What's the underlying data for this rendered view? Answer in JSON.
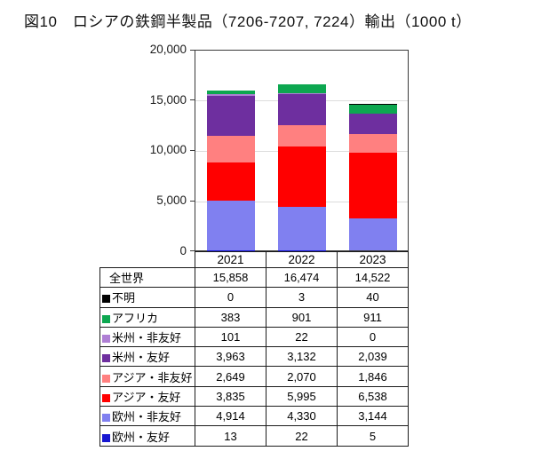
{
  "title": "図10　ロシアの鉄鋼半製品（7206-7207, 7224）輸出（1000 t）",
  "chart_data": {
    "type": "bar",
    "stacked": true,
    "title": "図10　ロシアの鉄鋼半製品（7206-7207, 7224）輸出（1000 t）",
    "categories": [
      "2021",
      "2022",
      "2023"
    ],
    "series_bottom_to_top": [
      {
        "name": "欧州・友好",
        "color": "#1717D1",
        "values": [
          13,
          22,
          5
        ]
      },
      {
        "name": "欧州・非友好",
        "color": "#8080F0",
        "values": [
          4914,
          4330,
          3144
        ]
      },
      {
        "name": "アジア・友好",
        "color": "#FF0000",
        "values": [
          3835,
          5995,
          6538
        ]
      },
      {
        "name": "アジア・非友好",
        "color": "#FF8080",
        "values": [
          2649,
          2070,
          1846
        ]
      },
      {
        "name": "米州・友好",
        "color": "#6E2F9F",
        "values": [
          3963,
          3132,
          2039
        ]
      },
      {
        "name": "米州・非友好",
        "color": "#AF7FD5",
        "values": [
          101,
          22,
          0
        ]
      },
      {
        "name": "アフリカ",
        "color": "#0DA750",
        "values": [
          383,
          901,
          911
        ]
      },
      {
        "name": "不明",
        "color": "#000000",
        "values": [
          0,
          3,
          40
        ]
      }
    ],
    "total": {
      "name": "全世界",
      "values": [
        15858,
        16474,
        14522
      ]
    },
    "ylim": [
      0,
      20000
    ],
    "yticks": [
      "20,000",
      "15,000",
      "10,000",
      "5,000",
      "0"
    ],
    "grid": true,
    "legend_position": "table-below-chart"
  },
  "table": {
    "header": [
      "2021",
      "2022",
      "2023"
    ],
    "rows": [
      {
        "label": "全世界",
        "swatch": null,
        "values": [
          "15,858",
          "16,474",
          "14,522"
        ]
      },
      {
        "label": "不明",
        "swatch": "#000000",
        "values": [
          "0",
          "3",
          "40"
        ]
      },
      {
        "label": "アフリカ",
        "swatch": "#0DA750",
        "values": [
          "383",
          "901",
          "911"
        ]
      },
      {
        "label": "米州・非友好",
        "swatch": "#AF7FD5",
        "values": [
          "101",
          "22",
          "0"
        ]
      },
      {
        "label": "米州・友好",
        "swatch": "#6E2F9F",
        "values": [
          "3,963",
          "3,132",
          "2,039"
        ]
      },
      {
        "label": "アジア・非友好",
        "swatch": "#FF8080",
        "values": [
          "2,649",
          "2,070",
          "1,846"
        ]
      },
      {
        "label": "アジア・友好",
        "swatch": "#FF0000",
        "values": [
          "3,835",
          "5,995",
          "6,538"
        ]
      },
      {
        "label": "欧州・非友好",
        "swatch": "#8080F0",
        "values": [
          "4,914",
          "4,330",
          "3,144"
        ]
      },
      {
        "label": "欧州・友好",
        "swatch": "#1717D1",
        "values": [
          "13",
          "22",
          "5"
        ]
      }
    ]
  }
}
